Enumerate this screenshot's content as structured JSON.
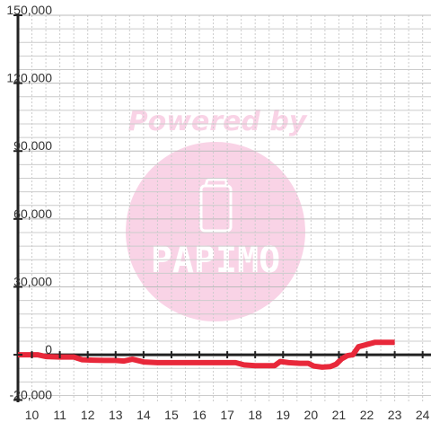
{
  "watermark": {
    "text": "Powered by",
    "brand": "PAPIMO",
    "color": "#f9d3e6",
    "icon": "phone-icon"
  },
  "colors": {
    "line": "#e8283a",
    "axis": "#222222",
    "grid_major": "#bbbbbb",
    "grid_minor": "#cccccc",
    "background": "#ffffff"
  },
  "chart_data": {
    "type": "line",
    "title": "",
    "xlabel": "",
    "ylabel": "",
    "xlim": [
      9.5,
      24.3
    ],
    "ylim": [
      -21000,
      150000
    ],
    "x_ticks": [
      {
        "value": 10,
        "label": "10"
      },
      {
        "value": 11,
        "label": "11"
      },
      {
        "value": 12,
        "label": "12"
      },
      {
        "value": 13,
        "label": "13"
      },
      {
        "value": 14,
        "label": "14"
      },
      {
        "value": 15,
        "label": "15"
      },
      {
        "value": 16,
        "label": "16"
      },
      {
        "value": 17,
        "label": "17"
      },
      {
        "value": 18,
        "label": "18"
      },
      {
        "value": 19,
        "label": "19"
      },
      {
        "value": 20,
        "label": "20"
      },
      {
        "value": 21,
        "label": "21"
      },
      {
        "value": 22,
        "label": "22"
      },
      {
        "value": 23,
        "label": "23"
      },
      {
        "value": 24,
        "label": "24"
      }
    ],
    "y_ticks": [
      {
        "value": 150000,
        "label": "150,000"
      },
      {
        "value": 120000,
        "label": "120,000"
      },
      {
        "value": 90000,
        "label": "90,000"
      },
      {
        "value": 60000,
        "label": "60,000"
      },
      {
        "value": 30000,
        "label": "30,000"
      },
      {
        "value": 0,
        "label": "0"
      },
      {
        "value": -20000,
        "label": "-20,000"
      }
    ],
    "grid": true,
    "series": [
      {
        "values": [
          [
            9.5,
            0
          ],
          [
            10.2,
            0
          ],
          [
            10.5,
            -800
          ],
          [
            11.0,
            -1000
          ],
          [
            11.5,
            -1000
          ],
          [
            11.8,
            -2200
          ],
          [
            12.2,
            -2400
          ],
          [
            12.6,
            -2500
          ],
          [
            13.0,
            -2500
          ],
          [
            13.3,
            -2800
          ],
          [
            13.6,
            -2000
          ],
          [
            14.0,
            -3200
          ],
          [
            14.5,
            -3500
          ],
          [
            15.0,
            -3500
          ],
          [
            15.5,
            -3500
          ],
          [
            16.0,
            -3500
          ],
          [
            16.5,
            -3500
          ],
          [
            17.0,
            -3500
          ],
          [
            17.3,
            -3500
          ],
          [
            17.6,
            -4500
          ],
          [
            18.0,
            -4800
          ],
          [
            18.5,
            -4800
          ],
          [
            18.7,
            -4800
          ],
          [
            18.9,
            -3000
          ],
          [
            19.2,
            -3500
          ],
          [
            19.6,
            -3800
          ],
          [
            19.9,
            -3800
          ],
          [
            20.1,
            -5000
          ],
          [
            20.4,
            -5500
          ],
          [
            20.7,
            -5200
          ],
          [
            20.9,
            -4200
          ],
          [
            21.1,
            -1800
          ],
          [
            21.3,
            -400
          ],
          [
            21.5,
            0
          ],
          [
            21.7,
            3500
          ],
          [
            22.0,
            4500
          ],
          [
            22.3,
            5500
          ],
          [
            22.6,
            5500
          ],
          [
            23.0,
            5500
          ]
        ]
      }
    ]
  }
}
